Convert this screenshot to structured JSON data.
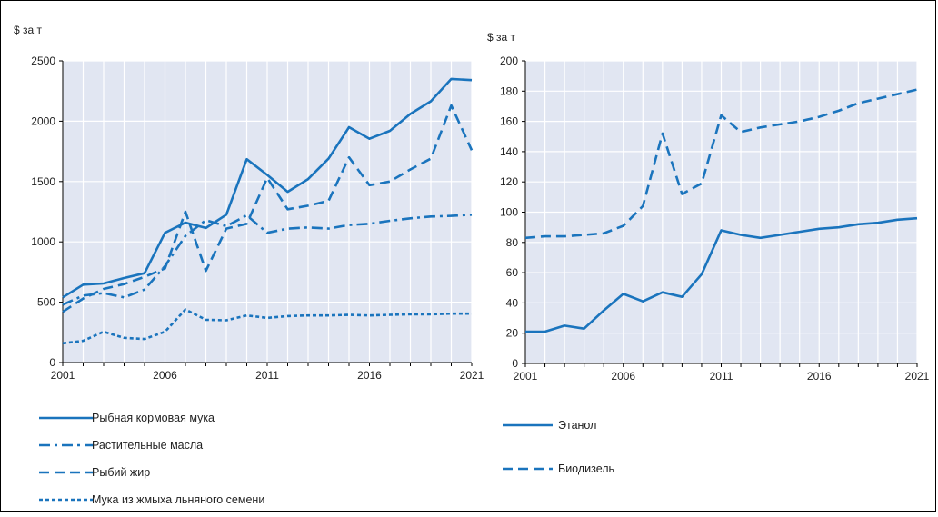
{
  "colors": {
    "series": "#1a74bd",
    "plot_bg": "#e1e6f2",
    "grid": "#ffffff",
    "axis": "#000000"
  },
  "chart_data": [
    {
      "type": "line",
      "ylabel": "$ за т",
      "ylim": [
        0,
        2500
      ],
      "yticks": [
        0,
        500,
        1000,
        1500,
        2000,
        2500
      ],
      "xlim": [
        2001,
        2021
      ],
      "xticks": [
        2001,
        2006,
        2011,
        2016,
        2021
      ],
      "grid": true,
      "legend_position": "bottom-left",
      "x": [
        2001,
        2002,
        2003,
        2004,
        2005,
        2006,
        2007,
        2008,
        2009,
        2010,
        2011,
        2012,
        2013,
        2014,
        2015,
        2016,
        2017,
        2018,
        2019,
        2020,
        2021
      ],
      "series": [
        {
          "name": "Рыбная кормовая мука",
          "dash": "solid",
          "values": [
            540,
            645,
            655,
            700,
            740,
            1075,
            1160,
            1115,
            1225,
            1685,
            1555,
            1415,
            1520,
            1690,
            1950,
            1855,
            1920,
            2060,
            2165,
            2350,
            2340
          ]
        },
        {
          "name": "Растительные масла",
          "dash": "dashdot",
          "values": [
            480,
            555,
            575,
            540,
            605,
            800,
            1050,
            1180,
            1130,
            1220,
            1075,
            1110,
            1120,
            1110,
            1140,
            1150,
            1175,
            1195,
            1210,
            1215,
            1225
          ]
        },
        {
          "name": "Рыбий жир",
          "dash": "dash",
          "values": [
            420,
            530,
            610,
            650,
            710,
            780,
            1250,
            760,
            1110,
            1150,
            1530,
            1270,
            1300,
            1340,
            1700,
            1470,
            1500,
            1600,
            1690,
            2130,
            1760
          ]
        },
        {
          "name": "Мука из жмыха льняного семени",
          "dash": "dot",
          "values": [
            160,
            180,
            255,
            205,
            195,
            255,
            440,
            355,
            350,
            390,
            370,
            385,
            390,
            390,
            395,
            390,
            395,
            400,
            400,
            405,
            405
          ]
        }
      ]
    },
    {
      "type": "line",
      "ylabel": "$ за т",
      "ylim": [
        0,
        200
      ],
      "yticks": [
        0,
        20,
        40,
        60,
        80,
        100,
        120,
        140,
        160,
        180,
        200
      ],
      "xlim": [
        2001,
        2021
      ],
      "xticks": [
        2001,
        2006,
        2011,
        2016,
        2021
      ],
      "grid": true,
      "legend_position": "bottom-left",
      "x": [
        2001,
        2002,
        2003,
        2004,
        2005,
        2006,
        2007,
        2008,
        2009,
        2010,
        2011,
        2012,
        2013,
        2014,
        2015,
        2016,
        2017,
        2018,
        2019,
        2020,
        2021
      ],
      "series": [
        {
          "name": "Этанол",
          "dash": "solid",
          "values": [
            21,
            21,
            25,
            23,
            35,
            46,
            41,
            47,
            44,
            59,
            88,
            85,
            83,
            85,
            87,
            89,
            90,
            92,
            93,
            95,
            96
          ]
        },
        {
          "name": "Биодизель",
          "dash": "dash",
          "values": [
            83,
            84,
            84,
            85,
            86,
            91,
            104,
            152,
            112,
            119,
            164,
            153,
            156,
            158,
            160,
            163,
            167,
            172,
            175,
            178,
            181
          ]
        }
      ]
    }
  ]
}
